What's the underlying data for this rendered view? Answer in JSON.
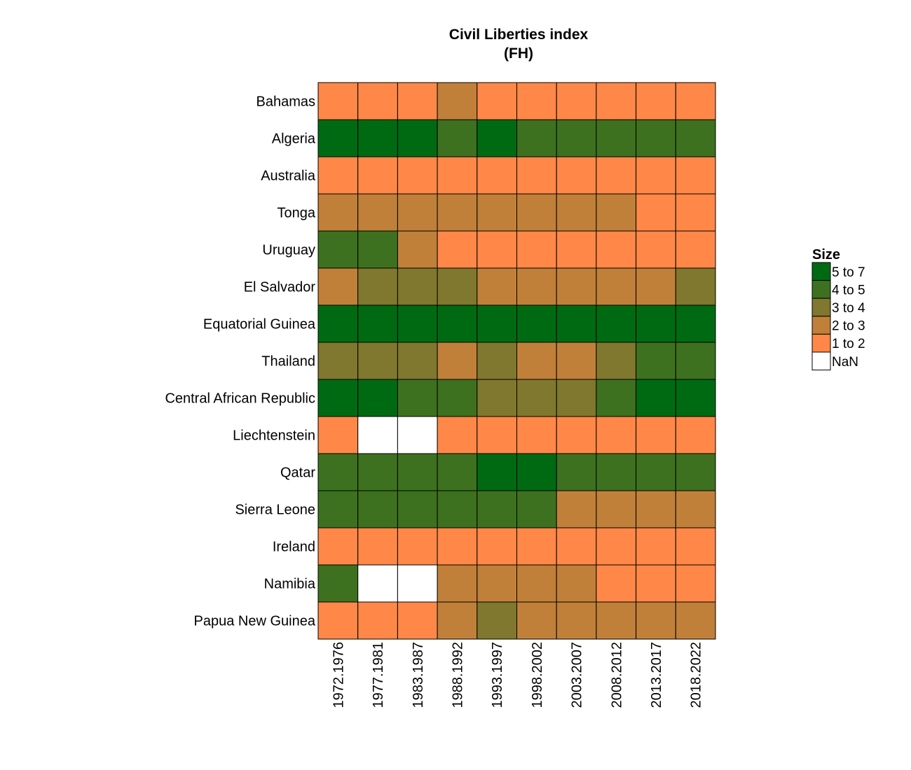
{
  "chart_data": {
    "type": "heatmap",
    "title": [
      "Civil Liberties index",
      "(FH)"
    ],
    "columns": [
      "1972.1976",
      "1977.1981",
      "1983.1987",
      "1988.1992",
      "1993.1997",
      "1998.2002",
      "2003.2007",
      "2008.2012",
      "2013.2017",
      "2018.2022"
    ],
    "rows": [
      {
        "name": "Bahamas",
        "bins": [
          "1 to 2",
          "1 to 2",
          "1 to 2",
          "2 to 3",
          "1 to 2",
          "1 to 2",
          "1 to 2",
          "1 to 2",
          "1 to 2",
          "1 to 2"
        ]
      },
      {
        "name": "Algeria",
        "bins": [
          "5 to 7",
          "5 to 7",
          "5 to 7",
          "4 to 5",
          "5 to 7",
          "4 to 5",
          "4 to 5",
          "4 to 5",
          "4 to 5",
          "4 to 5"
        ]
      },
      {
        "name": "Australia",
        "bins": [
          "1 to 2",
          "1 to 2",
          "1 to 2",
          "1 to 2",
          "1 to 2",
          "1 to 2",
          "1 to 2",
          "1 to 2",
          "1 to 2",
          "1 to 2"
        ]
      },
      {
        "name": "Tonga",
        "bins": [
          "2 to 3",
          "2 to 3",
          "2 to 3",
          "2 to 3",
          "2 to 3",
          "2 to 3",
          "2 to 3",
          "2 to 3",
          "1 to 2",
          "1 to 2"
        ]
      },
      {
        "name": "Uruguay",
        "bins": [
          "4 to 5",
          "4 to 5",
          "2 to 3",
          "1 to 2",
          "1 to 2",
          "1 to 2",
          "1 to 2",
          "1 to 2",
          "1 to 2",
          "1 to 2"
        ]
      },
      {
        "name": "El Salvador",
        "bins": [
          "2 to 3",
          "3 to 4",
          "3 to 4",
          "3 to 4",
          "2 to 3",
          "2 to 3",
          "2 to 3",
          "2 to 3",
          "2 to 3",
          "3 to 4"
        ]
      },
      {
        "name": "Equatorial Guinea",
        "bins": [
          "5 to 7",
          "5 to 7",
          "5 to 7",
          "5 to 7",
          "5 to 7",
          "5 to 7",
          "5 to 7",
          "5 to 7",
          "5 to 7",
          "5 to 7"
        ]
      },
      {
        "name": "Thailand",
        "bins": [
          "3 to 4",
          "3 to 4",
          "3 to 4",
          "2 to 3",
          "3 to 4",
          "2 to 3",
          "2 to 3",
          "3 to 4",
          "4 to 5",
          "4 to 5"
        ]
      },
      {
        "name": "Central African Republic",
        "bins": [
          "5 to 7",
          "5 to 7",
          "4 to 5",
          "4 to 5",
          "3 to 4",
          "3 to 4",
          "3 to 4",
          "4 to 5",
          "5 to 7",
          "5 to 7"
        ]
      },
      {
        "name": "Liechtenstein",
        "bins": [
          "1 to 2",
          "NaN",
          "NaN",
          "1 to 2",
          "1 to 2",
          "1 to 2",
          "1 to 2",
          "1 to 2",
          "1 to 2",
          "1 to 2"
        ]
      },
      {
        "name": "Qatar",
        "bins": [
          "4 to 5",
          "4 to 5",
          "4 to 5",
          "4 to 5",
          "5 to 7",
          "5 to 7",
          "4 to 5",
          "4 to 5",
          "4 to 5",
          "4 to 5"
        ]
      },
      {
        "name": "Sierra Leone",
        "bins": [
          "4 to 5",
          "4 to 5",
          "4 to 5",
          "4 to 5",
          "4 to 5",
          "4 to 5",
          "2 to 3",
          "2 to 3",
          "2 to 3",
          "2 to 3"
        ]
      },
      {
        "name": "Ireland",
        "bins": [
          "1 to 2",
          "1 to 2",
          "1 to 2",
          "1 to 2",
          "1 to 2",
          "1 to 2",
          "1 to 2",
          "1 to 2",
          "1 to 2",
          "1 to 2"
        ]
      },
      {
        "name": "Namibia",
        "bins": [
          "4 to 5",
          "NaN",
          "NaN",
          "2 to 3",
          "2 to 3",
          "2 to 3",
          "2 to 3",
          "1 to 2",
          "1 to 2",
          "1 to 2"
        ]
      },
      {
        "name": "Papua New Guinea",
        "bins": [
          "1 to 2",
          "1 to 2",
          "1 to 2",
          "2 to 3",
          "3 to 4",
          "2 to 3",
          "2 to 3",
          "2 to 3",
          "2 to 3",
          "2 to 3"
        ]
      }
    ],
    "legend": {
      "title": "Size",
      "placement": "right",
      "entries": [
        {
          "label": "5 to 7",
          "color": "#006a13"
        },
        {
          "label": "4 to 5",
          "color": "#3d711f"
        },
        {
          "label": "3 to 4",
          "color": "#7f782e"
        },
        {
          "label": "2 to 3",
          "color": "#c0803a"
        },
        {
          "label": "1 to 2",
          "color": "#ff8848"
        },
        {
          "label": "NaN",
          "color": "#ffffff"
        }
      ]
    },
    "cell_border_color": "#000000"
  }
}
